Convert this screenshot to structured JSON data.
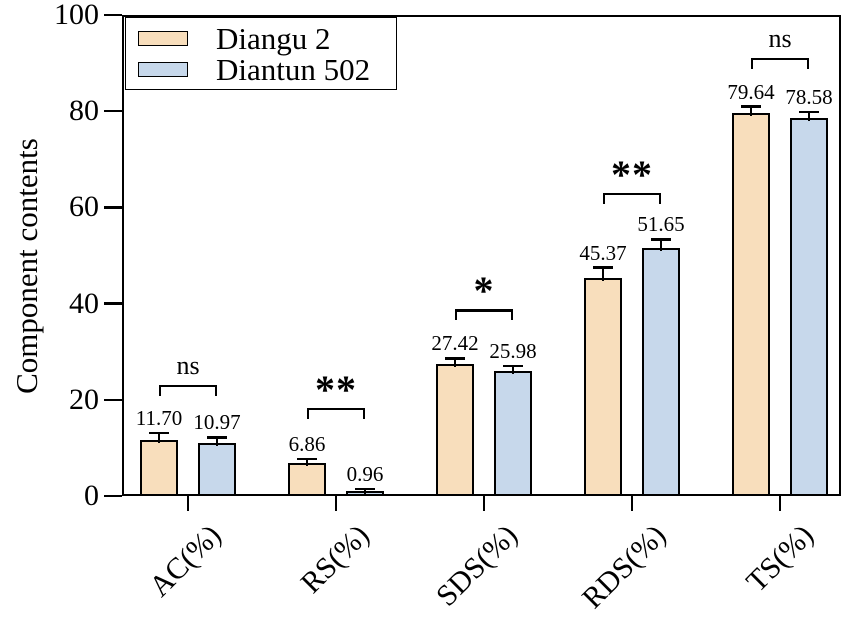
{
  "figure": {
    "background": "#ffffff",
    "axis_color": "#000000",
    "bar_edge_color": "#000000"
  },
  "chart_data": {
    "type": "bar",
    "title": "",
    "ylabel": "Component contents",
    "xlabel": "",
    "ylim": [
      0,
      100
    ],
    "yticks": [
      "0",
      "20",
      "40",
      "60",
      "80",
      "100"
    ],
    "grid": false,
    "legend_position": "top-left",
    "categories": [
      "AC(%)",
      "RS(%)",
      "SDS(%)",
      "RDS(%)",
      "TS(%)"
    ],
    "series": [
      {
        "name": "Diangu 2",
        "color": "#F8DEBC",
        "values": [
          11.7,
          6.86,
          27.42,
          45.37,
          79.64
        ],
        "value_labels": [
          "11.70",
          "6.86",
          "27.42",
          "45.37",
          "79.64"
        ],
        "errors": [
          1.4,
          0.8,
          1.2,
          2.1,
          1.3
        ]
      },
      {
        "name": "Diantun 502",
        "color": "#C7D8EB",
        "values": [
          10.97,
          0.96,
          25.98,
          51.65,
          78.58
        ],
        "value_labels": [
          "10.97",
          "0.96",
          "25.98",
          "51.65",
          "78.58"
        ],
        "errors": [
          1.2,
          0.5,
          1.1,
          1.7,
          1.2
        ]
      }
    ],
    "significance": [
      "ns",
      "**",
      "*",
      "**",
      "ns"
    ]
  }
}
